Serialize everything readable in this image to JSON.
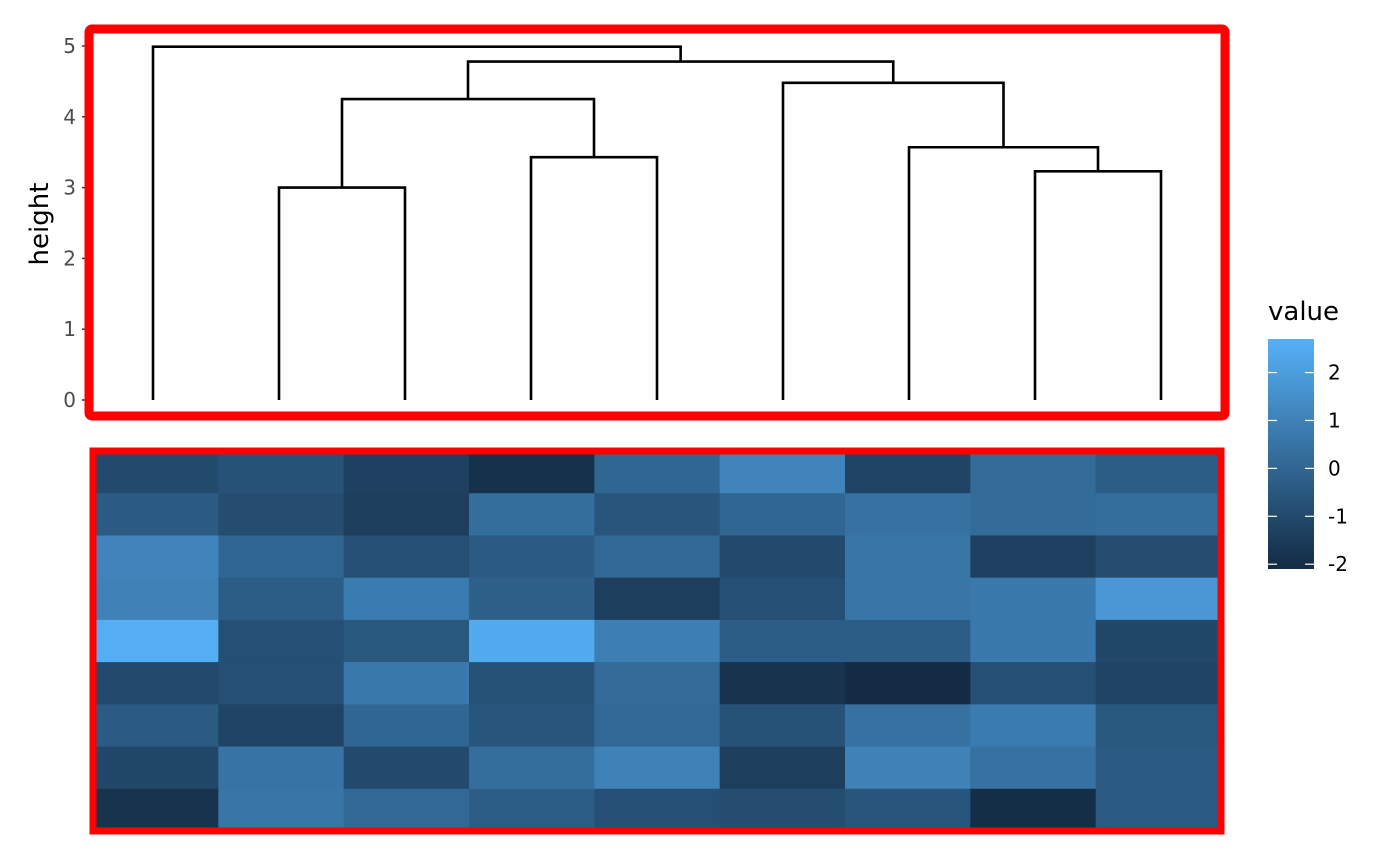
{
  "colors": {
    "frame": "#ff0000",
    "low": "#132b43",
    "high": "#56b1f7",
    "dendrogram_line": "#000000"
  },
  "chart_data": [
    {
      "type": "dendrogram",
      "ylabel": "height",
      "ylim": [
        0,
        5
      ],
      "yticks": [
        0,
        1,
        2,
        3,
        4,
        5
      ],
      "leaf_count": 9,
      "merges": [
        {
          "left": 2,
          "right": 3,
          "height": 3.0
        },
        {
          "left": 8,
          "right": 9,
          "height": 3.23
        },
        {
          "left": 4,
          "right": 5,
          "height": 3.43
        },
        {
          "left": 7,
          "right": [
            8,
            9
          ],
          "height": 3.57
        },
        {
          "left": [
            2,
            3
          ],
          "right": [
            4,
            5
          ],
          "height": 4.25
        },
        {
          "left": 6,
          "right": [
            7,
            8,
            9
          ],
          "height": 4.48
        },
        {
          "left": [
            2,
            3,
            4,
            5
          ],
          "right": [
            6,
            7,
            8,
            9
          ],
          "height": 4.78
        },
        {
          "left": 1,
          "right": [
            2,
            3,
            4,
            5,
            6,
            7,
            8,
            9
          ],
          "height": 4.99
        }
      ]
    },
    {
      "type": "heatmap",
      "rows": 9,
      "cols": 9,
      "legend_title": "value",
      "legend_ticks": [
        2,
        1,
        0,
        -1,
        -2
      ],
      "value_range": [
        -2.1,
        2.7
      ],
      "values": [
        [
          -1.0,
          -0.7,
          -1.3,
          -1.9,
          0.0,
          1.1,
          -1.2,
          0.2,
          -0.3
        ],
        [
          -0.4,
          -0.9,
          -1.4,
          0.3,
          -0.6,
          0.0,
          0.4,
          0.2,
          0.3
        ],
        [
          1.1,
          0.0,
          -0.8,
          -0.4,
          0.1,
          -1.0,
          0.6,
          -1.3,
          -0.9
        ],
        [
          1.0,
          -0.3,
          0.8,
          -0.2,
          -1.4,
          -0.8,
          0.6,
          0.7,
          1.8
        ],
        [
          2.6,
          -0.8,
          -0.5,
          2.5,
          0.9,
          -0.3,
          -0.3,
          0.7,
          -1.1
        ],
        [
          -1.0,
          -0.8,
          0.7,
          -0.7,
          0.2,
          -1.8,
          -2.1,
          -0.8,
          -1.2
        ],
        [
          -0.4,
          -1.2,
          0.0,
          -0.6,
          0.1,
          -0.7,
          0.4,
          0.8,
          -0.5
        ],
        [
          -1.1,
          0.5,
          -1.0,
          0.3,
          1.0,
          -1.4,
          1.0,
          0.4,
          -0.4
        ],
        [
          -1.8,
          0.6,
          0.1,
          -0.3,
          -0.8,
          -0.9,
          -0.6,
          -2.0,
          -0.4
        ]
      ]
    }
  ]
}
